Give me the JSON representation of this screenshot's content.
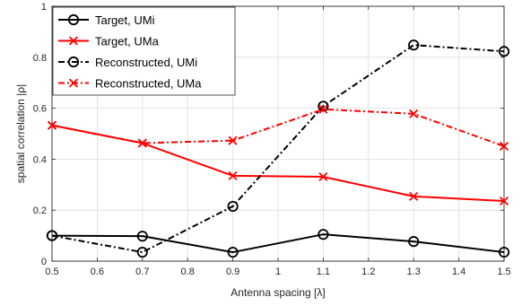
{
  "chart_data": {
    "type": "line",
    "title": "",
    "xlabel": "Antenna spacing [λ]",
    "ylabel": "spatial correlation |ρ|",
    "xlim": [
      0.5,
      1.5
    ],
    "ylim": [
      0,
      1
    ],
    "xticks": [
      0.5,
      0.6,
      0.7,
      0.8,
      0.9,
      1,
      1.1,
      1.2,
      1.3,
      1.4,
      1.5
    ],
    "xtick_labels": [
      "0.5",
      "0.6",
      "0.7",
      "0.8",
      "0.9",
      "1",
      "1.1",
      "1.2",
      "1.3",
      "1.4",
      "1.5"
    ],
    "yticks": [
      0,
      0.2,
      0.4,
      0.6,
      0.8,
      1
    ],
    "ytick_labels": [
      "0",
      "0.2",
      "0.4",
      "0.6",
      "0.8",
      "1"
    ],
    "grid": true,
    "legend_position": "top-left",
    "x": [
      0.5,
      0.7,
      0.9,
      1.1,
      1.3,
      1.5
    ],
    "series": [
      {
        "name": "Target, UMi",
        "values": [
          0.1,
          0.098,
          0.035,
          0.105,
          0.077,
          0.035
        ],
        "color": "#000000",
        "linestyle": "solid",
        "marker": "circle"
      },
      {
        "name": "Target, UMa",
        "values": [
          0.533,
          0.463,
          0.335,
          0.331,
          0.254,
          0.236
        ],
        "color": "#ff0000",
        "linestyle": "solid",
        "marker": "x"
      },
      {
        "name": "Reconstructed, UMi",
        "values": [
          0.1,
          0.035,
          0.215,
          0.608,
          0.848,
          0.823
        ],
        "color": "#000000",
        "linestyle": "dashdot",
        "marker": "circle"
      },
      {
        "name": "Reconstructed, UMa",
        "values": [
          0.533,
          0.463,
          0.473,
          0.596,
          0.578,
          0.451
        ],
        "color": "#ff0000",
        "linestyle": "dashdot",
        "marker": "x"
      }
    ]
  }
}
